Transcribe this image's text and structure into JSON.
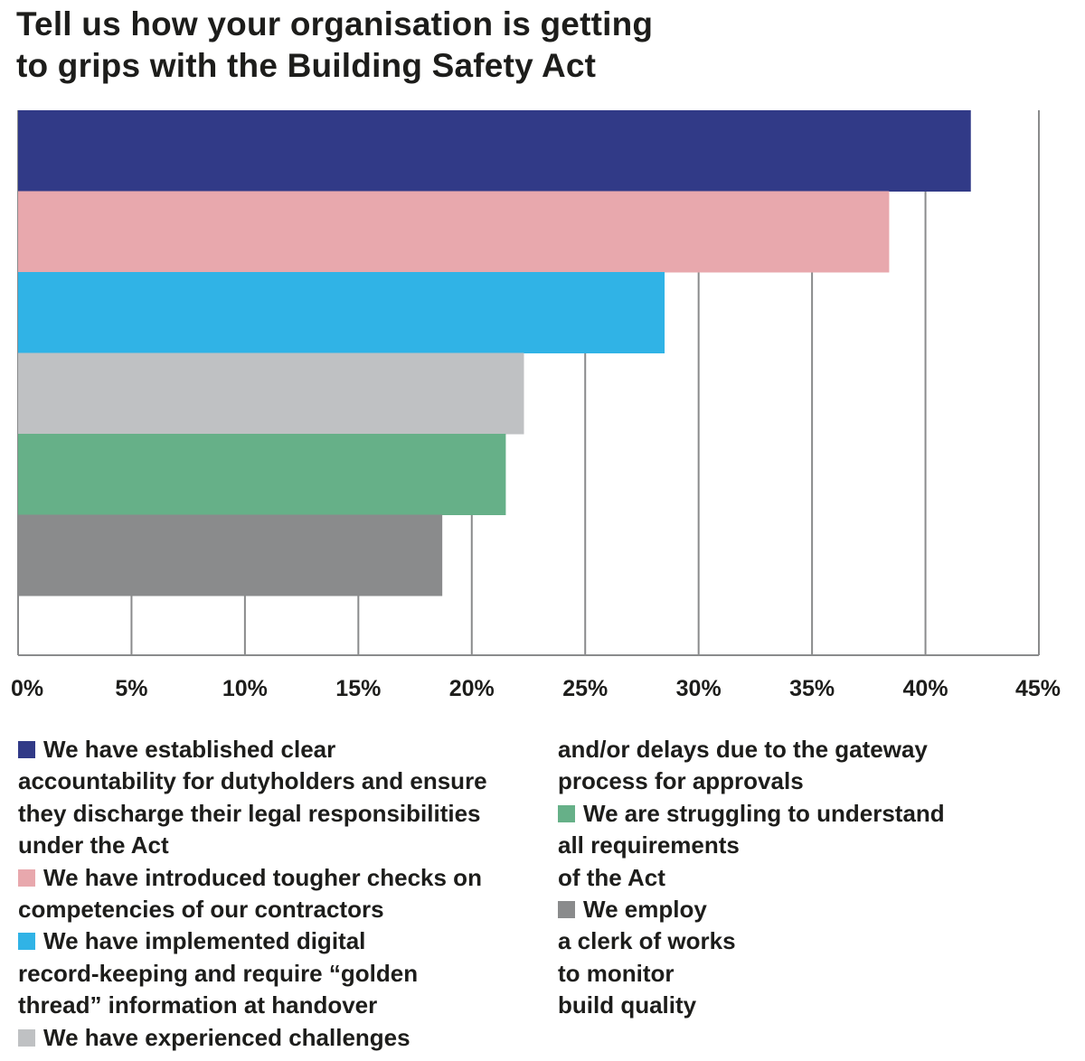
{
  "chart_data": {
    "type": "bar",
    "orientation": "horizontal",
    "title_lines": [
      "Tell us how your organisation is getting",
      "to grips with the Building Safety Act"
    ],
    "xlabel": "",
    "ylabel": "",
    "xlim": [
      0,
      45
    ],
    "x_ticks": [
      0,
      5,
      10,
      15,
      20,
      25,
      30,
      35,
      40,
      45
    ],
    "tick_labels": [
      "0%",
      "5%",
      "10%",
      "15%",
      "20%",
      "25%",
      "30%",
      "35%",
      "40%",
      "45%"
    ],
    "grid": "vertical",
    "legend_placement": "bottom",
    "categories": [
      "We have established clear accountability for dutyholders and ensure they discharge their legal responsibilities under the Act",
      "We have introduced tougher checks on competencies of our contractors",
      "We have implemented digital record-keeping and require “golden thread” information at handover",
      "We have experienced challenges and/or delays due to the gateway process for approvals",
      "We are struggling to understand all requirements of the Act",
      "We employ a clerk of works to monitor build quality"
    ],
    "values": [
      42,
      38.4,
      28.5,
      22.3,
      21.5,
      18.7
    ],
    "colors": [
      "#313a87",
      "#e8a8ad",
      "#30b3e6",
      "#bfc1c3",
      "#66b088",
      "#8a8b8c"
    ]
  },
  "legend": {
    "col1": [
      {
        "swatch": 0,
        "text": "We have established clear"
      },
      {
        "swatch": null,
        "text": "accountability for dutyholders and ensure"
      },
      {
        "swatch": null,
        "text": "they discharge their legal responsibilities"
      },
      {
        "swatch": null,
        "text": "under the Act"
      },
      {
        "swatch": 1,
        "text": "We have introduced tougher checks on"
      },
      {
        "swatch": null,
        "text": "competencies of our contractors"
      },
      {
        "swatch": 2,
        "text": "We have implemented digital"
      },
      {
        "swatch": null,
        "text": "record-keeping and require “golden"
      },
      {
        "swatch": null,
        "text": "thread” information at handover"
      },
      {
        "swatch": 3,
        "text": "We have experienced challenges"
      }
    ],
    "col2": [
      {
        "swatch": null,
        "text": "and/or delays due to the gateway"
      },
      {
        "swatch": null,
        "text": "process for approvals"
      },
      {
        "swatch": 4,
        "text": "We are struggling to understand"
      },
      {
        "swatch": null,
        "text": "all requirements"
      },
      {
        "swatch": null,
        "text": "of the Act"
      },
      {
        "swatch": 5,
        "text": "We employ"
      },
      {
        "swatch": null,
        "text": "a clerk of works"
      },
      {
        "swatch": null,
        "text": "to monitor"
      },
      {
        "swatch": null,
        "text": "build quality"
      }
    ]
  }
}
